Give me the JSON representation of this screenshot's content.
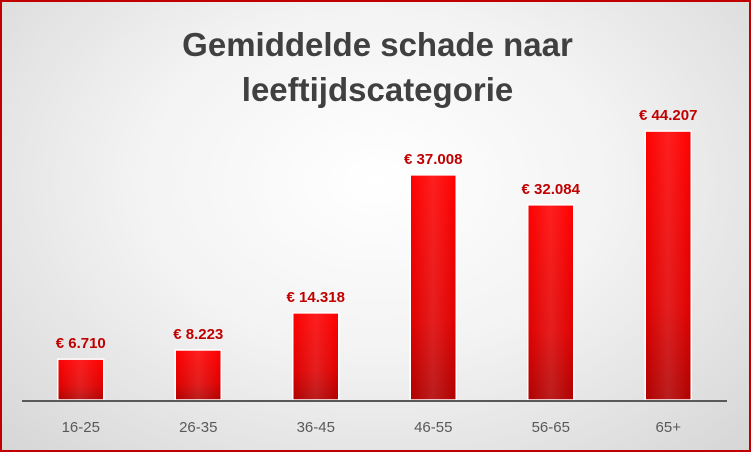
{
  "chart_data": {
    "type": "bar",
    "title_lines": [
      "Gemiddelde schade naar",
      "leeftijdscategorie"
    ],
    "categories": [
      "16-25",
      "26-35",
      "36-45",
      "46-55",
      "56-65",
      "65+"
    ],
    "values": [
      6710,
      8223,
      14318,
      37008,
      32084,
      44207
    ],
    "data_labels": [
      "€ 6.710",
      "€ 8.223",
      "€ 14.318",
      "€ 37.008",
      "€ 32.084",
      "€ 44.207"
    ],
    "ylim": [
      0,
      48000
    ],
    "grid": false,
    "legend": "none",
    "bar_color": "#e00000",
    "label_color": "#c00000"
  }
}
